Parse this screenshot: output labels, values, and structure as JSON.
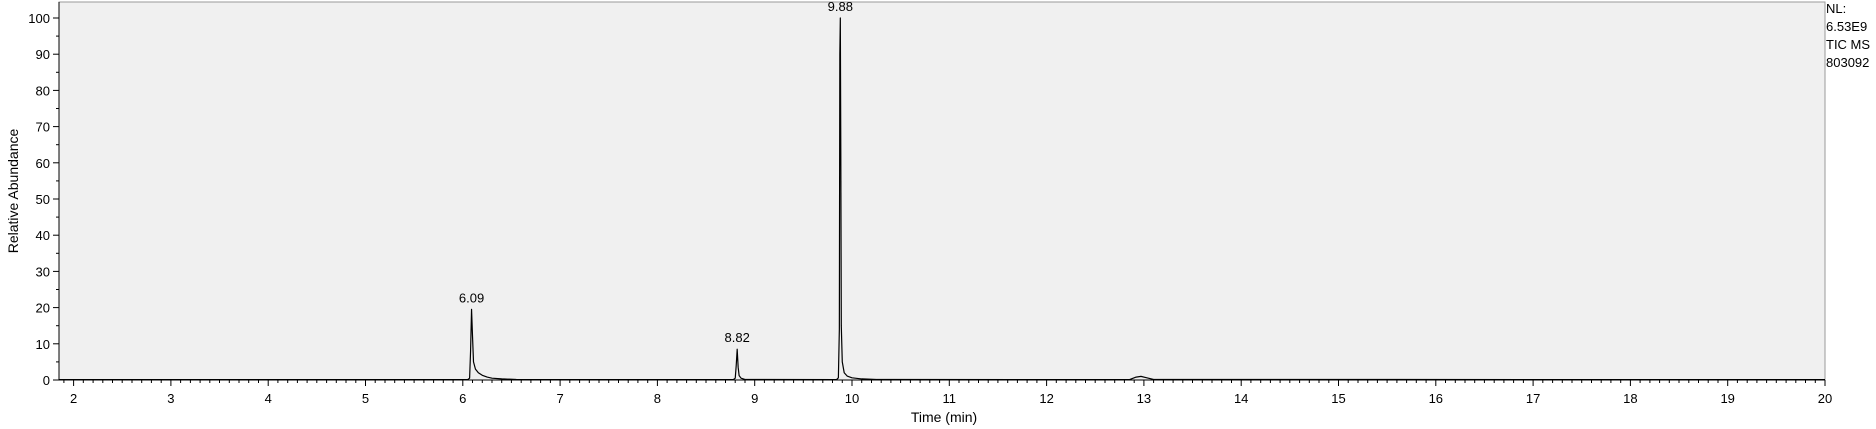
{
  "side_info": {
    "nl_label": "NL:",
    "nl_value": "6.53E9",
    "trace": "TIC  MS",
    "sample": "803092"
  },
  "chart_data": {
    "type": "line",
    "title": "",
    "xlabel": "Time (min)",
    "ylabel": "Relative Abundance",
    "xlim": [
      1.85,
      20
    ],
    "ylim": [
      0,
      100
    ],
    "xticks": [
      2,
      3,
      4,
      5,
      6,
      7,
      8,
      9,
      10,
      11,
      12,
      13,
      14,
      15,
      16,
      17,
      18,
      19,
      20
    ],
    "yticks": [
      0,
      10,
      20,
      30,
      40,
      50,
      60,
      70,
      80,
      90,
      100
    ],
    "grid": false,
    "background": "#f0f0f0",
    "line_color": "#000000",
    "peaks": [
      {
        "label": "6.09",
        "x": 6.09,
        "y": 19.5
      },
      {
        "label": "8.82",
        "x": 8.82,
        "y": 8.5
      },
      {
        "label": "9.88",
        "x": 9.88,
        "y": 100
      }
    ],
    "series": [
      {
        "x": [
          1.85,
          6.05,
          6.07,
          6.08,
          6.09,
          6.1,
          6.11,
          6.13,
          6.16,
          6.2,
          6.25,
          6.3,
          6.4,
          6.55,
          8.78,
          8.8,
          8.81,
          8.82,
          8.83,
          8.84,
          8.86,
          8.9,
          9.84,
          9.86,
          9.87,
          9.875,
          9.88,
          9.885,
          9.89,
          9.9,
          9.92,
          9.95,
          10.0,
          10.1,
          10.25,
          12.85,
          12.92,
          12.97,
          13.03,
          13.1,
          20.0
        ],
        "y": [
          0.1,
          0.1,
          0.5,
          8.0,
          19.5,
          12.0,
          5.0,
          3.0,
          2.0,
          1.3,
          0.8,
          0.5,
          0.3,
          0.15,
          0.1,
          0.5,
          4.0,
          8.5,
          3.5,
          1.2,
          0.5,
          0.15,
          0.1,
          0.6,
          14.0,
          90.0,
          100.0,
          63.0,
          15.0,
          5.0,
          2.0,
          1.1,
          0.6,
          0.3,
          0.15,
          0.1,
          0.8,
          1.0,
          0.6,
          0.15,
          0.1
        ]
      }
    ]
  }
}
